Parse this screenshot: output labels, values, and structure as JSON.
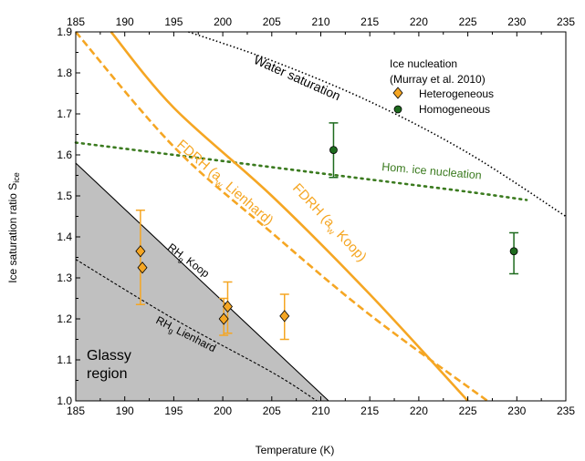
{
  "chart_data": {
    "type": "scatter",
    "xlabel": "Temperature (K)",
    "ylabel": "Ice saturation ratio S",
    "ylabel_sub": "ice",
    "xlim": [
      185,
      235
    ],
    "ylim": [
      1.0,
      1.9
    ],
    "x_ticks": [
      185,
      190,
      195,
      200,
      205,
      210,
      215,
      220,
      225,
      230,
      235
    ],
    "y_ticks": [
      1.0,
      1.1,
      1.2,
      1.3,
      1.4,
      1.5,
      1.6,
      1.7,
      1.8,
      1.9
    ],
    "grid": false,
    "legend": {
      "title_line1": "Ice nucleation",
      "title_line2": "(Murray et al. 2010)",
      "position": "top-right",
      "entries": [
        {
          "label": "Heterogeneous",
          "color": "#f5a623",
          "marker": "diamond"
        },
        {
          "label": "Homogeneous",
          "color": "#1e6b1e",
          "marker": "circle"
        }
      ]
    },
    "series": [
      {
        "name": "Heterogeneous",
        "color": "#f5a623",
        "marker": "diamond",
        "points": [
          {
            "x": 191.6,
            "y": 1.365,
            "err_low": 1.235,
            "err_high": 1.465
          },
          {
            "x": 191.8,
            "y": 1.325
          },
          {
            "x": 200.1,
            "y": 1.2,
            "err_low": 1.16,
            "err_high": 1.25
          },
          {
            "x": 200.5,
            "y": 1.23,
            "err_low": 1.165,
            "err_high": 1.29
          },
          {
            "x": 206.3,
            "y": 1.207,
            "err_low": 1.15,
            "err_high": 1.26
          }
        ]
      },
      {
        "name": "Homogeneous",
        "color": "#1e6b1e",
        "marker": "circle",
        "points": [
          {
            "x": 211.3,
            "y": 1.612,
            "err_low": 1.545,
            "err_high": 1.678
          },
          {
            "x": 229.7,
            "y": 1.365,
            "err_low": 1.31,
            "err_high": 1.41
          }
        ]
      }
    ],
    "curves": [
      {
        "label": "Water saturation",
        "style": "dotted",
        "color": "#000000",
        "x": [
          196.5,
          205,
          215,
          225,
          235
        ],
        "y": [
          1.9,
          1.83,
          1.73,
          1.605,
          1.45
        ]
      },
      {
        "label": "Hom. ice nucleation",
        "style": "dotted",
        "color": "#3a7a1e",
        "x": [
          185,
          195,
          205,
          215,
          225,
          231
        ],
        "y": [
          1.63,
          1.6,
          1.57,
          1.54,
          1.51,
          1.49
        ]
      },
      {
        "label": "FDRH (aw Koop)",
        "style": "solid",
        "color": "#f5a623",
        "x": [
          188.6,
          195,
          205,
          215,
          225
        ],
        "y": [
          1.9,
          1.715,
          1.5,
          1.26,
          1.0
        ]
      },
      {
        "label": "FDRH (aw Lienhard)",
        "style": "dashed",
        "color": "#f5a623",
        "x": [
          185,
          195,
          205,
          215,
          227
        ],
        "y": [
          1.9,
          1.62,
          1.41,
          1.21,
          1.0
        ]
      },
      {
        "label": "RHg Koop",
        "style": "solid",
        "color": "#000000",
        "x": [
          185,
          210.8
        ],
        "y": [
          1.58,
          1.0
        ]
      },
      {
        "label": "RHg Lienhard",
        "style": "dashed",
        "color": "#000000",
        "x": [
          185,
          195,
          205,
          209.6
        ],
        "y": [
          1.345,
          1.2,
          1.07,
          1.0
        ]
      }
    ],
    "annotations": {
      "water_saturation": "Water saturation",
      "hom_ice": "Hom. ice nucleation",
      "fdrh_koop_pre": "FDRH (a",
      "fdrh_koop_sub": "w",
      "fdrh_koop_post": " Koop)",
      "fdrh_lien_pre": "FDRH (a",
      "fdrh_lien_sub": "w",
      "fdrh_lien_post": " Lienhard)",
      "rhg_koop_pre": "RH",
      "rhg_koop_sub": "g",
      "rhg_koop_post": " Koop",
      "rhg_lien_pre": "RH",
      "rhg_lien_sub": "g",
      "rhg_lien_post": " Lienhard",
      "glassy_line1": "Glassy",
      "glassy_line2": "region"
    },
    "colors": {
      "orange": "#f5a623",
      "dark_green": "#1e6b1e",
      "olive_green": "#3a7a1e",
      "glassy_fill": "#c0c0c0"
    }
  }
}
